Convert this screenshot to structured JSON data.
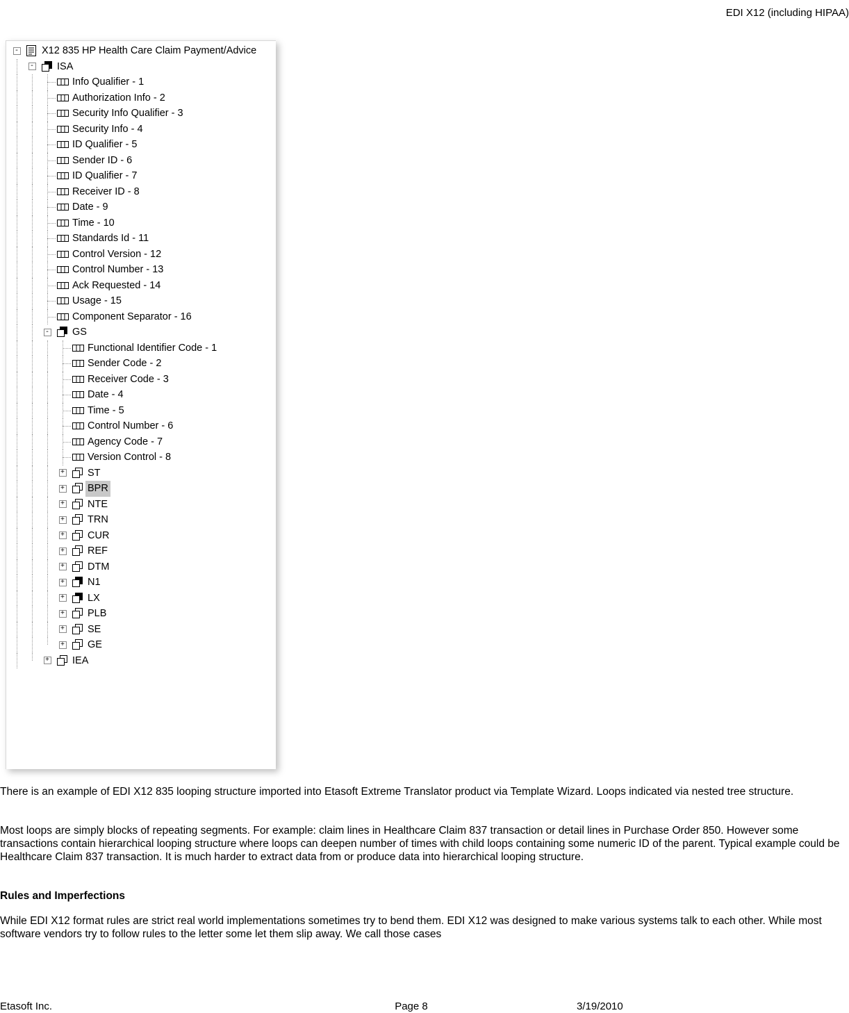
{
  "header": {
    "right": "EDI X12 (including HIPAA)"
  },
  "tree": {
    "root": {
      "label": "X12 835 HP Health Care Claim Payment/Advice"
    },
    "isa": {
      "label": "ISA"
    },
    "isa_fields": [
      "Info Qualifier - 1",
      "Authorization Info - 2",
      "Security Info Qualifier - 3",
      "Security Info - 4",
      "ID Qualifier - 5",
      "Sender ID - 6",
      "ID Qualifier - 7",
      "Receiver ID - 8",
      "Date - 9",
      "Time - 10",
      "Standards Id - 11",
      "Control Version - 12",
      "Control Number - 13",
      "Ack Requested - 14",
      "Usage - 15",
      "Component Separator - 16"
    ],
    "gs": {
      "label": "GS"
    },
    "gs_fields": [
      "Functional Identifier Code - 1",
      "Sender Code - 2",
      "Receiver Code - 3",
      "Date - 4",
      "Time - 5",
      "Control Number - 6",
      "Agency Code - 7",
      "Version Control - 8"
    ],
    "gs_segments": [
      {
        "label": "ST",
        "icon": "multi",
        "selected": false
      },
      {
        "label": "BPR",
        "icon": "multi",
        "selected": true
      },
      {
        "label": "NTE",
        "icon": "multi",
        "selected": false
      },
      {
        "label": "TRN",
        "icon": "multi",
        "selected": false
      },
      {
        "label": "CUR",
        "icon": "multi",
        "selected": false
      },
      {
        "label": "REF",
        "icon": "multi",
        "selected": false
      },
      {
        "label": "DTM",
        "icon": "multi",
        "selected": false
      },
      {
        "label": "N1",
        "icon": "group",
        "selected": false
      },
      {
        "label": "LX",
        "icon": "group",
        "selected": false
      },
      {
        "label": "PLB",
        "icon": "multi",
        "selected": false
      },
      {
        "label": "SE",
        "icon": "multi",
        "selected": false
      },
      {
        "label": "GE",
        "icon": "multi",
        "selected": false
      }
    ],
    "iea": {
      "label": "IEA"
    }
  },
  "paragraphs": {
    "p1": "There is an example of EDI X12 835 looping structure imported into Etasoft Extreme Translator product via Template Wizard. Loops indicated via nested tree structure.",
    "p2": "Most loops are simply blocks of repeating segments. For example: claim lines in Healthcare Claim 837 transaction or detail lines in Purchase Order 850. However some transactions contain hierarchical looping structure where loops can deepen number of times with child loops containing some numeric ID of the parent. Typical example could be Healthcare Claim 837 transaction. It is much harder to extract data from or produce data into hierarchical looping structure.",
    "section": "Rules and Imperfections",
    "p3": "While EDI X12 format rules are strict real world implementations sometimes try to bend them. EDI X12 was designed to make various systems talk to each other. While most software vendors try to follow rules to the letter some let them slip away. We call those cases"
  },
  "footer": {
    "left": "Etasoft Inc.",
    "mid": "Page 8",
    "right": "3/19/2010"
  }
}
